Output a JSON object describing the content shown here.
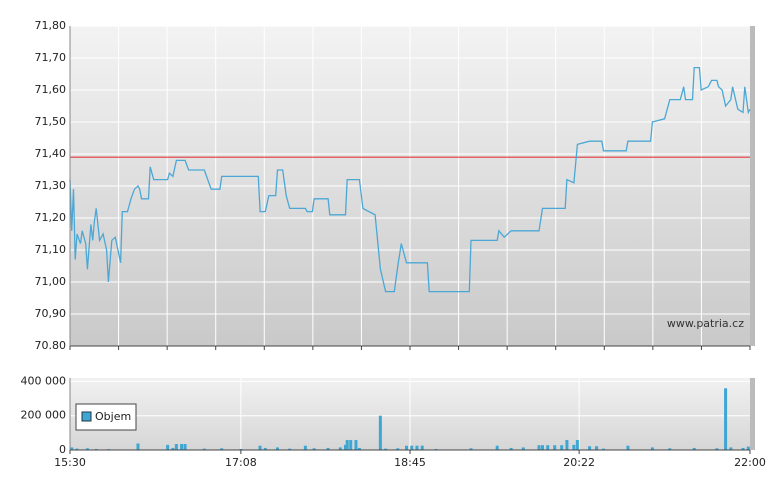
{
  "chart_data": [
    {
      "type": "line",
      "color": "#4ba8d6",
      "watermark": "www.patria.cz",
      "reference_line": {
        "value": 71.39,
        "color": "#e0393e"
      },
      "xlim": [
        "15:30",
        "22:00"
      ],
      "ylim": [
        70.8,
        71.8
      ],
      "yticks": [
        {
          "value": 70.8,
          "label": "70.80"
        },
        {
          "value": 70.9,
          "label": "70,90"
        },
        {
          "value": 71.0,
          "label": "71,00"
        },
        {
          "value": 71.1,
          "label": "71,10"
        },
        {
          "value": 71.2,
          "label": "71,20"
        },
        {
          "value": 71.3,
          "label": "71,30"
        },
        {
          "value": 71.4,
          "label": "71,40"
        },
        {
          "value": 71.5,
          "label": "71,50"
        },
        {
          "value": 71.6,
          "label": "71,60"
        },
        {
          "value": 71.7,
          "label": "71,70"
        },
        {
          "value": 71.8,
          "label": "71,80"
        }
      ],
      "x": [
        "15:30",
        "15:31",
        "15:32",
        "15:33",
        "15:34",
        "15:36",
        "15:37",
        "15:39",
        "15:40",
        "15:42",
        "15:43",
        "15:44",
        "15:45",
        "15:47",
        "15:49",
        "15:51",
        "15:52",
        "15:54",
        "15:56",
        "15:59",
        "16:00",
        "16:03",
        "16:05",
        "16:07",
        "16:09",
        "16:10",
        "16:11",
        "16:15",
        "16:16",
        "16:18",
        "16:26",
        "16:27",
        "16:29",
        "16:31",
        "16:36",
        "16:38",
        "16:47",
        "16:51",
        "16:56",
        "16:57",
        "17:18",
        "17:19",
        "17:22",
        "17:24",
        "17:28",
        "17:29",
        "17:32",
        "17:34",
        "17:36",
        "17:45",
        "17:46",
        "17:49",
        "17:50",
        "17:58",
        "17:59",
        "18:08",
        "18:09",
        "18:16",
        "18:18",
        "18:25",
        "18:28",
        "18:31",
        "18:36",
        "18:38",
        "18:40",
        "18:43",
        "18:55",
        "18:56",
        "19:19",
        "19:20",
        "19:35",
        "19:36",
        "19:39",
        "19:43",
        "19:59",
        "20:01",
        "20:14",
        "20:15",
        "20:19",
        "20:21",
        "20:28",
        "20:35",
        "20:36",
        "20:49",
        "20:50",
        "21:03",
        "21:04",
        "21:11",
        "21:14",
        "21:20",
        "21:22",
        "21:23",
        "21:27",
        "21:28",
        "21:31",
        "21:32",
        "21:36",
        "21:38",
        "21:41",
        "21:42",
        "21:44",
        "21:46",
        "21:49",
        "21:50",
        "21:53",
        "21:56",
        "21:57",
        "21:59",
        "22:00"
      ],
      "values": [
        71.32,
        71.16,
        71.29,
        71.07,
        71.15,
        71.12,
        71.16,
        71.12,
        71.04,
        71.18,
        71.13,
        71.19,
        71.23,
        71.13,
        71.15,
        71.1,
        71.0,
        71.13,
        71.14,
        71.06,
        71.22,
        71.22,
        71.26,
        71.29,
        71.3,
        71.29,
        71.26,
        71.26,
        71.36,
        71.32,
        71.32,
        71.34,
        71.33,
        71.38,
        71.38,
        71.35,
        71.35,
        71.29,
        71.29,
        71.33,
        71.33,
        71.22,
        71.22,
        71.27,
        71.27,
        71.35,
        71.35,
        71.27,
        71.23,
        71.23,
        71.22,
        71.22,
        71.26,
        71.26,
        71.21,
        71.21,
        71.32,
        71.32,
        71.23,
        71.21,
        71.04,
        70.97,
        70.97,
        71.05,
        71.12,
        71.06,
        71.06,
        70.97,
        70.97,
        71.13,
        71.13,
        71.16,
        71.14,
        71.16,
        71.16,
        71.23,
        71.23,
        71.32,
        71.31,
        71.43,
        71.44,
        71.44,
        71.41,
        71.41,
        71.44,
        71.44,
        71.5,
        71.51,
        71.57,
        71.57,
        71.61,
        71.57,
        71.57,
        71.67,
        71.67,
        71.6,
        71.61,
        71.63,
        71.63,
        71.61,
        71.6,
        71.55,
        71.57,
        71.61,
        71.54,
        71.53,
        71.61,
        71.53,
        71.54
      ]
    },
    {
      "type": "bar",
      "legend": "upper left",
      "xlim": [
        "15:30",
        "22:00"
      ],
      "xticks": [
        "15:30",
        "17:08",
        "18:45",
        "20:22",
        "22:00"
      ],
      "ylim": [
        0,
        420000
      ],
      "yticks": [
        0,
        {
          "value": 200000,
          "label": "200 000"
        },
        {
          "value": 400000,
          "label": "400 000"
        }
      ],
      "x": [
        "15:31",
        "15:34",
        "15:40",
        "15:45",
        "15:52",
        "16:09",
        "16:26",
        "16:29",
        "16:31",
        "16:34",
        "16:36",
        "16:47",
        "16:57",
        "17:08",
        "17:19",
        "17:22",
        "17:29",
        "17:36",
        "17:45",
        "17:50",
        "17:58",
        "18:05",
        "18:08",
        "18:09",
        "18:11",
        "18:14",
        "18:16",
        "18:28",
        "18:31",
        "18:38",
        "18:43",
        "18:46",
        "18:49",
        "18:52",
        "19:00",
        "19:20",
        "19:35",
        "19:43",
        "19:50",
        "19:59",
        "20:01",
        "20:04",
        "20:08",
        "20:12",
        "20:15",
        "20:19",
        "20:21",
        "20:28",
        "20:32",
        "20:36",
        "20:50",
        "21:04",
        "21:14",
        "21:28",
        "21:41",
        "21:46",
        "21:49",
        "21:56",
        "21:59"
      ],
      "series": [
        {
          "name": "Objem",
          "color": "#3ea6d2",
          "values": [
            15000,
            8000,
            10000,
            6000,
            5000,
            38000,
            30000,
            12000,
            35000,
            35000,
            35000,
            8000,
            10000,
            6000,
            25000,
            12000,
            15000,
            8000,
            25000,
            10000,
            12000,
            15000,
            30000,
            58000,
            58000,
            58000,
            12000,
            200000,
            8000,
            10000,
            25000,
            25000,
            25000,
            25000,
            6000,
            10000,
            25000,
            12000,
            15000,
            28000,
            28000,
            28000,
            28000,
            28000,
            58000,
            30000,
            58000,
            22000,
            22000,
            8000,
            25000,
            15000,
            10000,
            12000,
            10000,
            360000,
            15000,
            12000,
            20000
          ]
        }
      ]
    }
  ]
}
